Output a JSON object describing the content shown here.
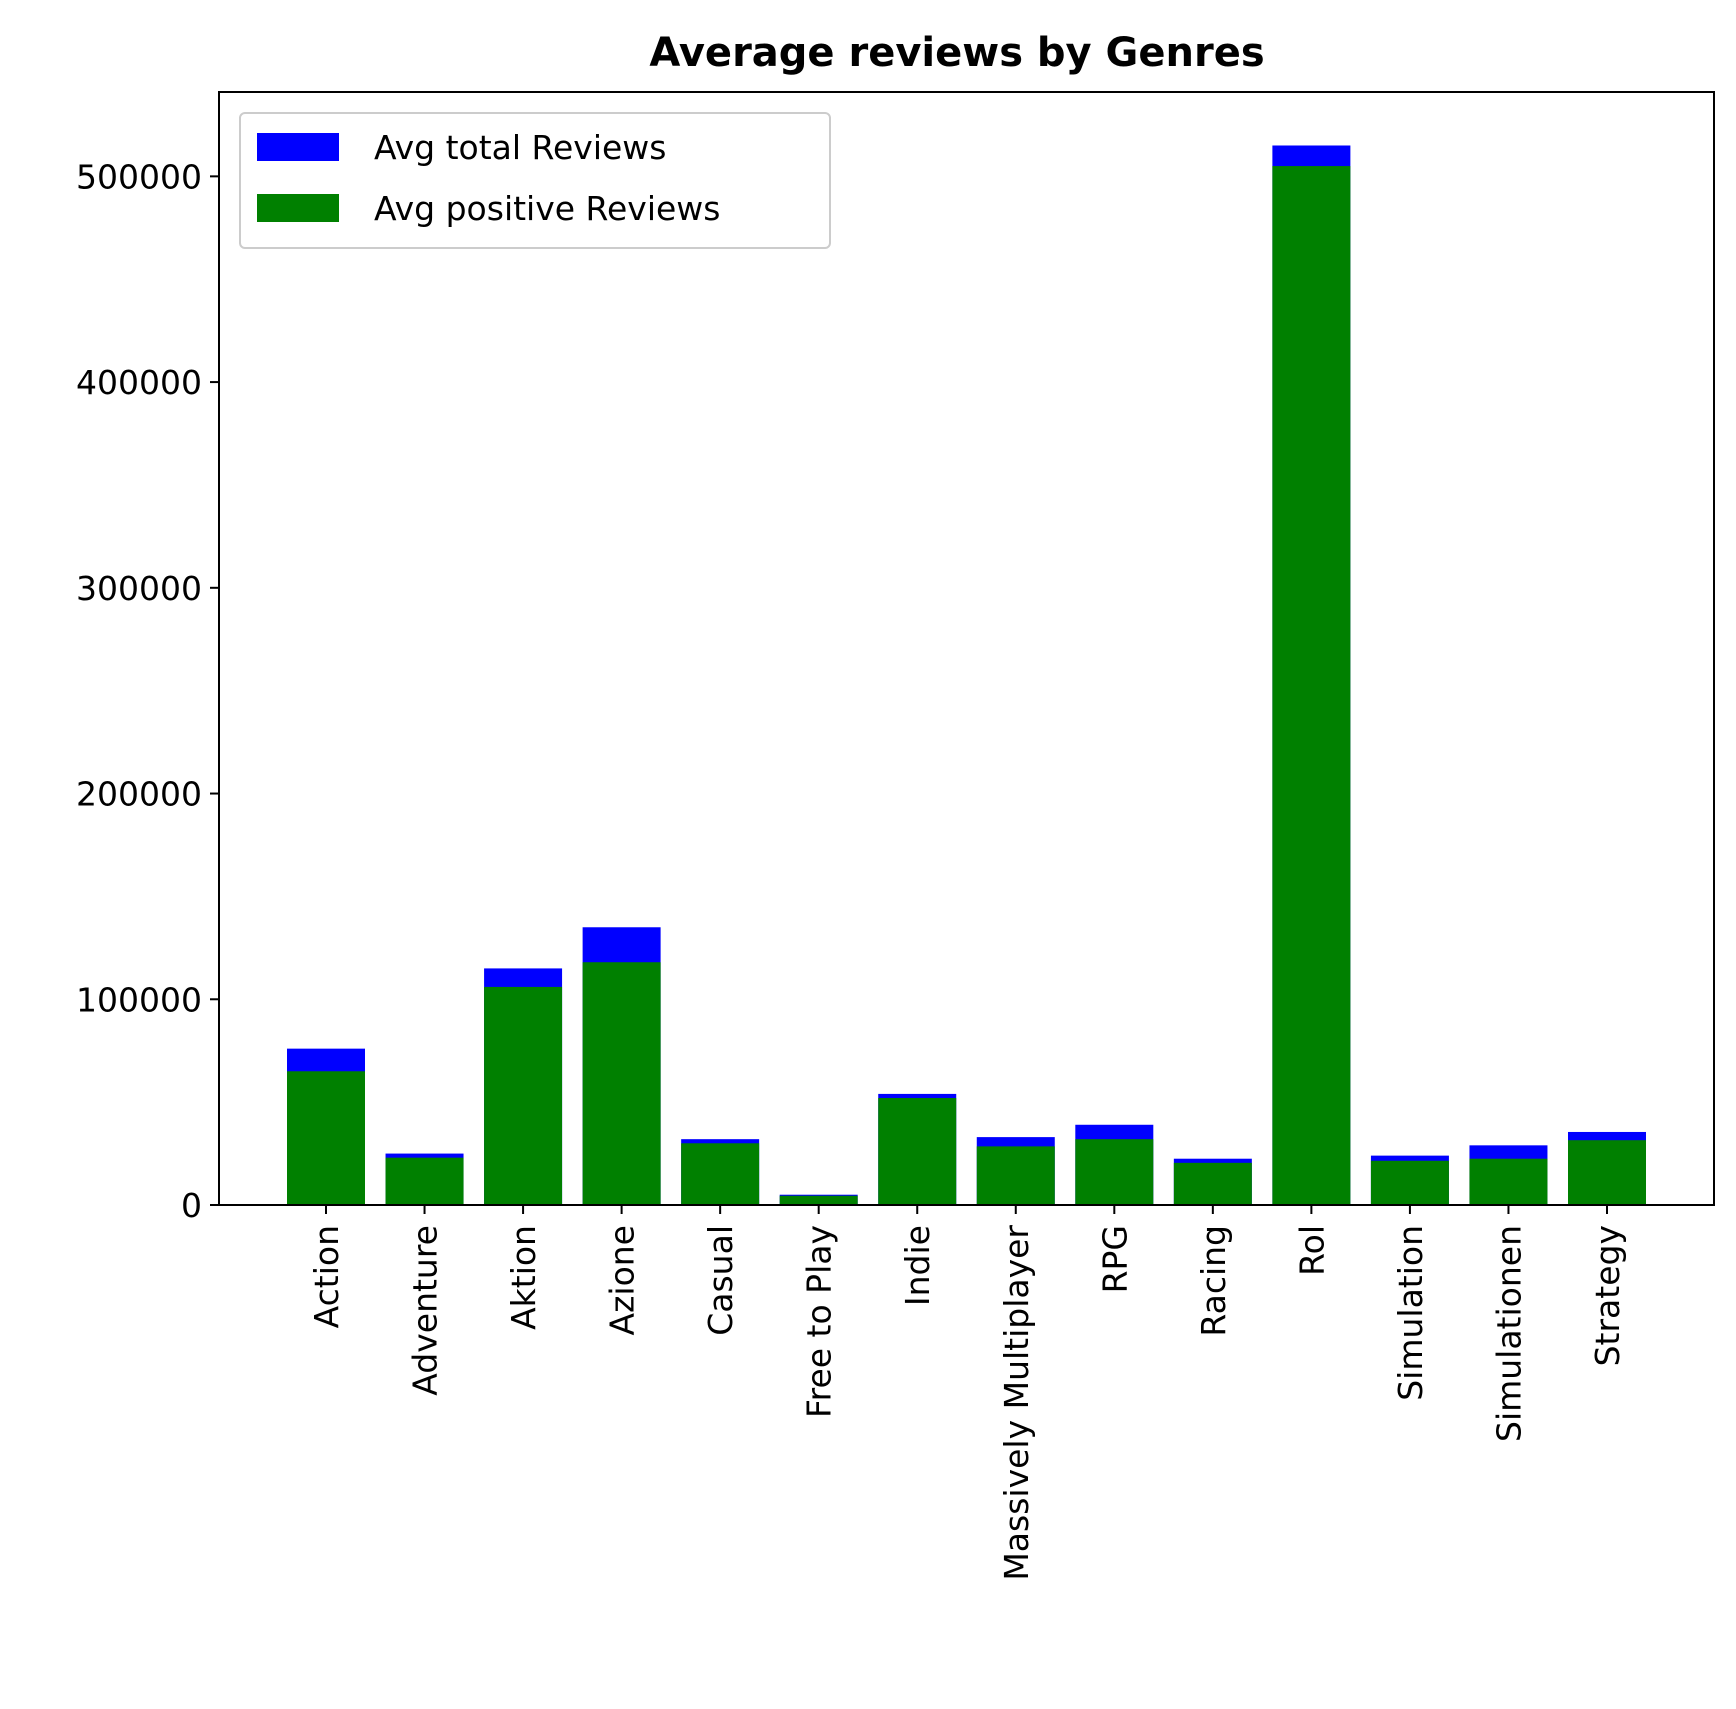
{
  "chart_data": {
    "type": "bar",
    "title": "Average reviews by Genres",
    "xlabel": "",
    "ylabel": "",
    "categories": [
      "Action",
      "Adventure",
      "Aktion",
      "Azione",
      "Casual",
      "Free to Play",
      "Indie",
      "Massively Multiplayer",
      "RPG",
      "Racing",
      "Rol",
      "Simulation",
      "Simulationen",
      "Strategy"
    ],
    "series": [
      {
        "name": "Avg total Reviews",
        "color": "#0000ff",
        "values": [
          76000,
          25000,
          115000,
          135000,
          32000,
          5000,
          54000,
          33000,
          39000,
          22500,
          515000,
          24000,
          29000,
          35500
        ]
      },
      {
        "name": "Avg positive Reviews",
        "color": "#008000",
        "values": [
          65000,
          23000,
          106000,
          118000,
          30000,
          4500,
          52000,
          28500,
          32000,
          20500,
          505000,
          21500,
          22500,
          31500
        ]
      }
    ],
    "ylim": [
      0,
      541000
    ],
    "yticks": [
      0,
      100000,
      200000,
      300000,
      400000,
      500000
    ],
    "ytick_labels": [
      "0",
      "100000",
      "200000",
      "300000",
      "400000",
      "500000"
    ],
    "legend_position": "upper-left",
    "grid": false
  }
}
